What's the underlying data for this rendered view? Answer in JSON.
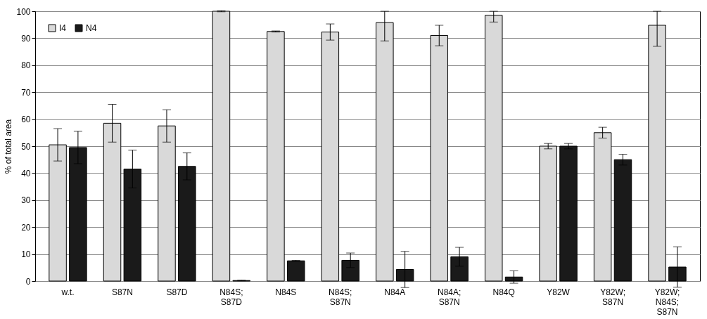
{
  "chart_data": {
    "type": "bar",
    "ylabel": "% of total area",
    "categories": [
      "w.t.",
      "S87N",
      "S87D",
      "N84S; S87D",
      "N84S",
      "N84S; S87N",
      "N84A",
      "N84A; S87N",
      "N84Q",
      "Y82W",
      "Y82W; S87N",
      "Y82W; N84S; S87N"
    ],
    "series": [
      {
        "name": "I4",
        "color": "#d9d9d9",
        "values": [
          50.5,
          58.5,
          57.5,
          100,
          92.5,
          92.3,
          95.8,
          91,
          98.5,
          50,
          55,
          94.8
        ],
        "errors": [
          6,
          7,
          6,
          0.2,
          0.2,
          3,
          [
            89,
            100
          ],
          3.8,
          [
            96,
            100
          ],
          1,
          2,
          [
            87,
            100
          ]
        ]
      },
      {
        "name": "N4",
        "color": "#1a1a1a",
        "values": [
          49.5,
          41.5,
          42.5,
          0.2,
          7.5,
          7.7,
          4.3,
          9,
          1.5,
          50,
          45,
          5.2
        ],
        "errors": [
          6,
          7,
          5,
          0.1,
          0.2,
          2.7,
          6.7,
          3.5,
          2.3,
          1,
          2,
          7.5
        ]
      }
    ],
    "ylim": [
      0,
      100
    ],
    "yticks": [
      0,
      10,
      20,
      30,
      40,
      50,
      60,
      70,
      80,
      90,
      100
    ],
    "grid": "y",
    "legend": "top left"
  }
}
